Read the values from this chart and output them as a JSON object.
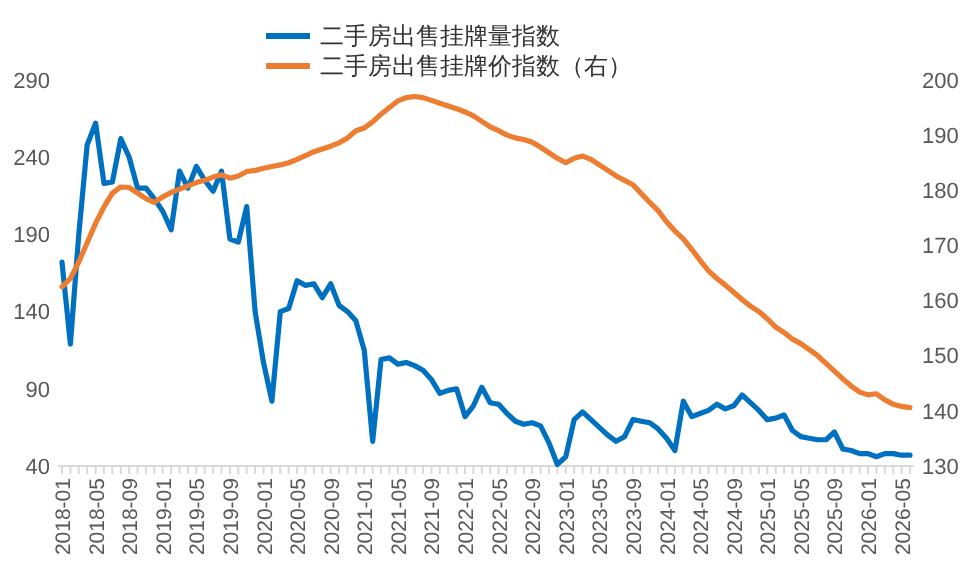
{
  "chart_data": {
    "type": "line",
    "categories": [
      "2018-01",
      null,
      null,
      null,
      "2018-05",
      null,
      null,
      null,
      "2018-09",
      null,
      null,
      null,
      "2019-01",
      null,
      null,
      null,
      "2019-05",
      null,
      null,
      null,
      "2019-09",
      null,
      null,
      null,
      "2020-01",
      null,
      null,
      null,
      "2020-05",
      null,
      null,
      null,
      "2020-09",
      null,
      null,
      null,
      "2021-01",
      null,
      null,
      null,
      "2021-05",
      null,
      null,
      null,
      "2021-09",
      null,
      null,
      null,
      "2022-01",
      null,
      null,
      null,
      "2022-05",
      null,
      null,
      null,
      "2022-09",
      null,
      null,
      null,
      "2023-01",
      null,
      null,
      null,
      "2023-05",
      null,
      null,
      null,
      "2023-09",
      null,
      null,
      null,
      "2024-01",
      null,
      null,
      null,
      "2024-05",
      null,
      null,
      null,
      "2024-09",
      null,
      null,
      null,
      "2025-01",
      null,
      null,
      null,
      "2025-05",
      null,
      null,
      null,
      "2025-09",
      null,
      null,
      null,
      "2026-01",
      null,
      null,
      null,
      "2026-05",
      null
    ],
    "series": [
      {
        "name": "二手房出售挂牌量指数",
        "color": "#0070c0",
        "values": [
          172,
          119,
          190,
          248,
          262,
          223,
          224,
          252,
          240,
          220,
          220,
          213,
          205,
          193,
          231,
          220,
          234,
          225,
          218,
          231,
          187,
          185,
          208,
          140,
          107,
          82,
          140,
          142,
          160,
          157,
          158,
          149,
          158,
          144,
          140,
          134,
          115,
          56,
          109,
          110,
          106,
          107,
          105,
          102,
          96,
          87,
          89,
          90,
          72,
          79,
          91,
          81,
          80,
          74,
          69,
          67,
          68,
          66,
          55,
          41,
          46,
          70,
          75,
          70,
          65,
          60,
          56,
          59,
          70,
          69,
          68,
          64,
          58,
          50,
          82,
          72,
          74,
          76,
          80,
          77,
          79,
          86,
          81,
          76,
          70,
          71,
          73,
          63,
          59,
          58,
          57,
          57,
          62,
          51,
          50,
          48,
          48,
          46,
          48,
          48,
          47,
          47
        ]
      },
      {
        "name": "二手房出售挂牌价指数（右）",
        "color": "#ed7d31",
        "axis": "y2",
        "values": [
          162.5,
          164,
          167,
          170.5,
          174,
          177,
          179.5,
          180.6,
          180.5,
          179.5,
          178.5,
          177.8,
          178.8,
          179.6,
          180.2,
          180.8,
          181.4,
          181.8,
          182.4,
          182.8,
          182.2,
          182.6,
          183.4,
          183.6,
          184,
          184.3,
          184.6,
          185,
          185.6,
          186.3,
          187,
          187.5,
          188,
          188.6,
          189.5,
          190.8,
          191.3,
          192.4,
          193.8,
          195,
          196.2,
          196.8,
          197,
          196.8,
          196.3,
          195.8,
          195.3,
          194.8,
          194.2,
          193.5,
          192.5,
          191.5,
          190.8,
          190,
          189.5,
          189.2,
          188.7,
          187.8,
          186.8,
          185.8,
          185,
          185.8,
          186.2,
          185.6,
          184.6,
          183.6,
          182.6,
          181.8,
          181,
          179.4,
          177.8,
          176.3,
          174.3,
          172.6,
          171.2,
          169.3,
          167.3,
          165.4,
          164,
          162.8,
          161.5,
          160.2,
          159,
          158,
          156.7,
          155.2,
          154.2,
          153,
          152.2,
          151.1,
          150,
          148.6,
          147.2,
          145.8,
          144.5,
          143.4,
          142.9,
          143.1,
          142,
          141.2,
          140.8,
          140.6
        ]
      }
    ],
    "ylim": [
      40,
      290
    ],
    "yticks": [
      40,
      90,
      140,
      190,
      240,
      290
    ],
    "y2lim": [
      130,
      200
    ],
    "y2ticks": [
      130,
      140,
      150,
      160,
      170,
      180,
      190,
      200
    ],
    "legend": "top",
    "grid": false
  }
}
